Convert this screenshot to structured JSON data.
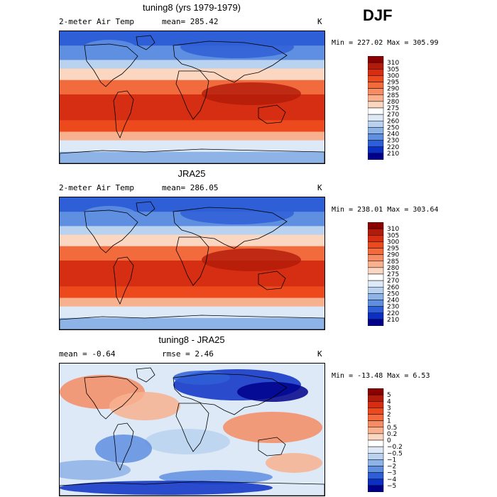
{
  "season": "DJF",
  "panels": [
    {
      "title": "tuning8 (yrs 1979-1979)",
      "left_label": "2-meter Air Temp",
      "center_label": "mean= 285.42",
      "units": "K",
      "minmax": "Min = 227.02 Max = 305.99",
      "colorbar_labels": [
        "310",
        "305",
        "300",
        "295",
        "290",
        "285",
        "280",
        "275",
        "270",
        "260",
        "250",
        "240",
        "230",
        "220",
        "210"
      ],
      "colorbar_colors": [
        "#8b0000",
        "#b21a0a",
        "#d62e12",
        "#ec4a1d",
        "#f26b3d",
        "#f58c63",
        "#f8b18f",
        "#fbd7c2",
        "#ffffff",
        "#dde9f6",
        "#b9d2ef",
        "#8eb3e6",
        "#5f8fe0",
        "#2f5fd6",
        "#0b2fc4",
        "#00008b"
      ],
      "map_style": "absolute"
    },
    {
      "title": "JRA25",
      "left_label": "2-meter Air Temp",
      "center_label": "mean= 286.05",
      "units": "K",
      "minmax": "Min = 238.01 Max = 303.64",
      "colorbar_labels": [
        "310",
        "305",
        "300",
        "295",
        "290",
        "285",
        "280",
        "275",
        "270",
        "260",
        "250",
        "240",
        "230",
        "220",
        "210"
      ],
      "colorbar_colors": [
        "#8b0000",
        "#b21a0a",
        "#d62e12",
        "#ec4a1d",
        "#f26b3d",
        "#f58c63",
        "#f8b18f",
        "#fbd7c2",
        "#ffffff",
        "#dde9f6",
        "#b9d2ef",
        "#8eb3e6",
        "#5f8fe0",
        "#2f5fd6",
        "#0b2fc4",
        "#00008b"
      ],
      "map_style": "absolute"
    },
    {
      "title": "tuning8 - JRA25",
      "left_label": "mean =  -0.64",
      "center_label": "rmse =   2.46",
      "units": "K",
      "minmax": "Min = -13.48 Max =   6.53",
      "colorbar_labels": [
        "5",
        "4",
        "3",
        "2",
        "1",
        "0.5",
        "0.2",
        "0",
        "−0.2",
        "−0.5",
        "−1",
        "−2",
        "−3",
        "−4",
        "−5"
      ],
      "colorbar_colors": [
        "#8b0000",
        "#b21a0a",
        "#d62e12",
        "#ec4a1d",
        "#f26b3d",
        "#f58c63",
        "#f8b18f",
        "#fbd7c2",
        "#ffffff",
        "#dde9f6",
        "#b9d2ef",
        "#8eb3e6",
        "#5f8fe0",
        "#2f5fd6",
        "#0b2fc4",
        "#00008b"
      ],
      "map_style": "difference"
    }
  ]
}
